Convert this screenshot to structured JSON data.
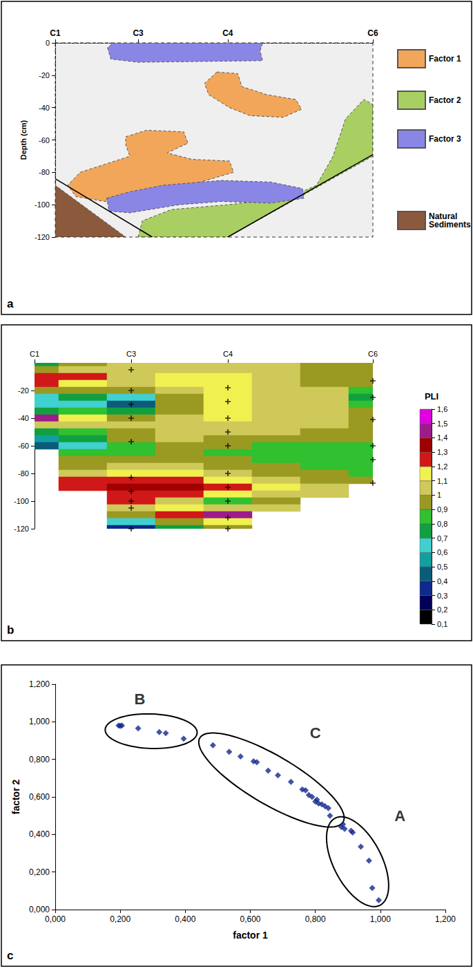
{
  "chart_data": [
    {
      "type": "region_map",
      "panel_label": "a",
      "y_label": "Depth (cm)",
      "xlim": [
        0,
        3.83
      ],
      "xticks": [
        {
          "value": 0,
          "label": "C1"
        },
        {
          "value": 1,
          "label": "C3"
        },
        {
          "value": 2.08,
          "label": "C4"
        },
        {
          "value": 3.83,
          "label": "C6"
        }
      ],
      "ylim": [
        -120,
        0
      ],
      "yticks": [
        0,
        -20,
        -40,
        -60,
        -80,
        -100,
        -120
      ],
      "grid": false,
      "legend": "right",
      "series": [
        {
          "name": "Factor 1",
          "color": "#f2a65a",
          "regions": [
            [
              [
                1.95,
                -18
              ],
              [
                2.2,
                -19
              ],
              [
                2.25,
                -27
              ],
              [
                2.55,
                -32
              ],
              [
                2.9,
                -35
              ],
              [
                2.97,
                -41
              ],
              [
                2.75,
                -46
              ],
              [
                2.35,
                -45
              ],
              [
                2.1,
                -40
              ],
              [
                1.85,
                -32
              ],
              [
                1.8,
                -25
              ]
            ],
            [
              [
                0.85,
                -58
              ],
              [
                1.1,
                -54
              ],
              [
                1.55,
                -55
              ],
              [
                1.6,
                -62
              ],
              [
                1.35,
                -68
              ],
              [
                1.65,
                -72
              ],
              [
                2.1,
                -73
              ],
              [
                2.15,
                -80
              ],
              [
                1.75,
                -86
              ],
              [
                1.2,
                -93
              ],
              [
                0.6,
                -98
              ],
              [
                0.25,
                -95
              ],
              [
                0.15,
                -88
              ],
              [
                0.3,
                -80
              ],
              [
                0.6,
                -75
              ],
              [
                0.9,
                -70
              ],
              [
                0.85,
                -63
              ]
            ]
          ]
        },
        {
          "name": "Factor 2",
          "color": "#a9cf62",
          "regions": [
            [
              [
                1.0,
                -120
              ],
              [
                1.05,
                -110
              ],
              [
                1.4,
                -103
              ],
              [
                2.08,
                -100
              ],
              [
                2.8,
                -96
              ],
              [
                3.15,
                -88
              ],
              [
                3.35,
                -70
              ],
              [
                3.5,
                -47
              ],
              [
                3.72,
                -35
              ],
              [
                3.83,
                -38
              ],
              [
                3.83,
                -70
              ],
              [
                2.08,
                -120
              ]
            ]
          ]
        },
        {
          "name": "Factor 3",
          "color": "#8a86e6",
          "regions": [
            [
              [
                0.63,
                -3
              ],
              [
                0.67,
                -10
              ],
              [
                1.0,
                -12
              ],
              [
                2.5,
                -11
              ],
              [
                2.47,
                -5
              ],
              [
                2.5,
                0
              ],
              [
                0.7,
                0
              ]
            ],
            [
              [
                0.62,
                -96
              ],
              [
                0.9,
                -92
              ],
              [
                1.3,
                -88
              ],
              [
                2.0,
                -85
              ],
              [
                2.6,
                -86
              ],
              [
                2.98,
                -90
              ],
              [
                3.0,
                -96
              ],
              [
                2.6,
                -99
              ],
              [
                2.0,
                -98
              ],
              [
                1.5,
                -100
              ],
              [
                0.9,
                -105
              ],
              [
                0.65,
                -104
              ]
            ]
          ]
        },
        {
          "name": "Natural Sediments",
          "color": "#8b5a3c",
          "regions": [
            [
              [
                0,
                -88
              ],
              [
                0,
                -120
              ],
              [
                0.85,
                -120
              ]
            ]
          ]
        }
      ],
      "boundaries": [
        [
          [
            0,
            -84
          ],
          [
            1.17,
            -120
          ]
        ],
        [
          [
            2.08,
            -120
          ],
          [
            3.83,
            -69
          ]
        ]
      ]
    },
    {
      "type": "contour",
      "panel_label": "b",
      "xlim": [
        0,
        3.5
      ],
      "xticks": [
        {
          "value": 0,
          "label": "C1"
        },
        {
          "value": 1,
          "label": "C3"
        },
        {
          "value": 2,
          "label": "C4"
        },
        {
          "value": 3.5,
          "label": "C6"
        }
      ],
      "ylim": [
        -120,
        0
      ],
      "yticks": [
        -20,
        -40,
        -60,
        -80,
        -100,
        -120
      ],
      "grid": false,
      "x": [
        0,
        0.5,
        1,
        1.5,
        2,
        2.5,
        3,
        3.5
      ],
      "y": [
        0,
        -5,
        -10,
        -15,
        -20,
        -25,
        -30,
        -35,
        -40,
        -45,
        -50,
        -55,
        -60,
        -65,
        -70,
        -75,
        -80,
        -85,
        -90,
        -95,
        -100,
        -105,
        -110,
        -115,
        -120
      ],
      "pli": [
        [
          0.7,
          0.95,
          1.0,
          1.0,
          1.0,
          1.0,
          0.95,
          0.95
        ],
        [
          0.9,
          1.05,
          1.0,
          1.05,
          1.05,
          1.05,
          0.95,
          0.95
        ],
        [
          1.25,
          1.2,
          1.05,
          1.1,
          1.1,
          1.05,
          0.95,
          0.95
        ],
        [
          1.25,
          1.15,
          1.0,
          1.1,
          1.1,
          1.05,
          0.95,
          0.9
        ],
        [
          0.95,
          0.95,
          0.95,
          1.05,
          1.1,
          1.05,
          1.0,
          0.85
        ],
        [
          0.65,
          0.7,
          0.6,
          0.95,
          1.1,
          1.05,
          1.0,
          0.75
        ],
        [
          0.6,
          0.6,
          0.45,
          0.9,
          1.1,
          1.05,
          1.05,
          0.85
        ],
        [
          0.7,
          0.8,
          0.7,
          0.95,
          1.1,
          1.05,
          1.05,
          0.95
        ],
        [
          1.4,
          1.15,
          0.95,
          1.05,
          1.1,
          1.05,
          1.0,
          0.95
        ],
        [
          1.05,
          1.0,
          1.0,
          1.05,
          1.05,
          1.0,
          1.0,
          0.95
        ],
        [
          0.75,
          0.85,
          0.95,
          1.0,
          1.0,
          1.0,
          0.95,
          0.95
        ],
        [
          0.55,
          0.75,
          0.9,
          1.05,
          0.95,
          0.95,
          0.95,
          0.95
        ],
        [
          0.4,
          0.65,
          0.8,
          0.95,
          0.9,
          0.85,
          0.85,
          0.85
        ],
        [
          null,
          0.8,
          0.85,
          0.9,
          0.85,
          0.85,
          0.85,
          0.85
        ],
        [
          null,
          0.9,
          0.95,
          0.95,
          0.9,
          0.85,
          0.85,
          0.85
        ],
        [
          null,
          0.95,
          1.0,
          1.0,
          0.95,
          0.9,
          0.85,
          0.85
        ],
        [
          null,
          1.05,
          1.1,
          1.1,
          1.05,
          0.95,
          0.9,
          0.85
        ],
        [
          null,
          1.2,
          1.25,
          1.25,
          1.15,
          1.05,
          0.95,
          0.95
        ],
        [
          null,
          1.2,
          1.3,
          1.3,
          1.25,
          1.1,
          1.0,
          null
        ],
        [
          null,
          null,
          1.25,
          1.25,
          1.1,
          1.05,
          1.0,
          null
        ],
        [
          null,
          null,
          1.2,
          1.05,
          0.8,
          0.9,
          null,
          null
        ],
        [
          null,
          null,
          1.05,
          1.1,
          1.05,
          1.0,
          null,
          null
        ],
        [
          null,
          null,
          0.95,
          1.2,
          1.45,
          null,
          null,
          null
        ],
        [
          null,
          null,
          0.6,
          0.9,
          1.1,
          null,
          null,
          null
        ],
        [
          null,
          null,
          0.3,
          0.7,
          0.9,
          null,
          null,
          null
        ]
      ],
      "samples": [
        [
          1,
          -5
        ],
        [
          1,
          -20
        ],
        [
          1,
          -30
        ],
        [
          1,
          -40
        ],
        [
          1,
          -57
        ],
        [
          1,
          -83
        ],
        [
          1,
          -93
        ],
        [
          1,
          -100
        ],
        [
          1,
          -105
        ],
        [
          1,
          -120
        ],
        [
          2,
          -18
        ],
        [
          2,
          -28
        ],
        [
          2,
          -40
        ],
        [
          2,
          -50
        ],
        [
          2,
          -60
        ],
        [
          2,
          -80
        ],
        [
          2,
          -90
        ],
        [
          2,
          -100
        ],
        [
          2,
          -112
        ],
        [
          2,
          -120
        ],
        [
          3.5,
          -13
        ],
        [
          3.5,
          -25
        ],
        [
          3.5,
          -41
        ],
        [
          3.5,
          -60
        ],
        [
          3.5,
          -70
        ],
        [
          3.5,
          -87
        ]
      ],
      "colorbar": {
        "title": "PLI",
        "range": [
          0.1,
          1.6
        ],
        "ticks": [
          {
            "value": 0.1,
            "label": "0,1"
          },
          {
            "value": 0.2,
            "label": "0,2"
          },
          {
            "value": 0.3,
            "label": "0,3"
          },
          {
            "value": 0.4,
            "label": "0,4"
          },
          {
            "value": 0.5,
            "label": "0,5"
          },
          {
            "value": 0.6,
            "label": "0,6"
          },
          {
            "value": 0.7,
            "label": "0,7"
          },
          {
            "value": 0.8,
            "label": "0,8"
          },
          {
            "value": 0.9,
            "label": "0,9"
          },
          1,
          {
            "value": 1.1,
            "label": "1,1"
          },
          {
            "value": 1.2,
            "label": "1,2"
          },
          {
            "value": 1.3,
            "label": "1,3"
          },
          {
            "value": 1.4,
            "label": "1,4"
          },
          {
            "value": 1.5,
            "label": "1,5"
          },
          {
            "value": 1.6,
            "label": "1,6"
          }
        ],
        "colors": [
          "#000000",
          "#00005a",
          "#0d2a8c",
          "#0b5c7a",
          "#10a0a0",
          "#40d0d0",
          "#10a040",
          "#30c030",
          "#9a9a22",
          "#cfc95a",
          "#f0f050",
          "#d01818",
          "#a00000",
          "#9c1c8c",
          "#e000e0"
        ]
      }
    },
    {
      "type": "scatter",
      "panel_label": "c",
      "x_label": "factor 1",
      "y_label": "factor 2",
      "xlim": [
        0,
        1.2
      ],
      "ylim": [
        0,
        1.2
      ],
      "xticks": [
        {
          "value": 0,
          "label": "0,000"
        },
        {
          "value": 0.2,
          "label": "0,200"
        },
        {
          "value": 0.4,
          "label": "0,400"
        },
        {
          "value": 0.6,
          "label": "0,600"
        },
        {
          "value": 0.8,
          "label": "0,800"
        },
        {
          "value": 1,
          "label": "1,000"
        },
        {
          "value": 1.2,
          "label": "1,200"
        }
      ],
      "yticks": [
        {
          "value": 0,
          "label": "0,000"
        },
        {
          "value": 0.2,
          "label": "0,200"
        },
        {
          "value": 0.4,
          "label": "0,400"
        },
        {
          "value": 0.6,
          "label": "0,600"
        },
        {
          "value": 0.8,
          "label": "0,800"
        },
        {
          "value": 1,
          "label": "1,000"
        },
        {
          "value": 1.2,
          "label": "1,200"
        }
      ],
      "grid": false,
      "color": "#14288c",
      "marker": "diamond",
      "x": [
        0.195,
        0.2,
        0.205,
        0.255,
        0.32,
        0.34,
        0.395,
        0.485,
        0.535,
        0.57,
        0.61,
        0.62,
        0.655,
        0.685,
        0.725,
        0.76,
        0.77,
        0.78,
        0.79,
        0.8,
        0.805,
        0.81,
        0.82,
        0.83,
        0.84,
        0.845,
        0.88,
        0.885,
        0.89,
        0.91,
        0.915,
        0.94,
        0.965,
        0.975,
        0.995
      ],
      "values": [
        0.98,
        0.978,
        0.98,
        0.965,
        0.945,
        0.94,
        0.91,
        0.875,
        0.84,
        0.815,
        0.79,
        0.785,
        0.74,
        0.715,
        0.68,
        0.64,
        0.635,
        0.61,
        0.6,
        0.575,
        0.585,
        0.565,
        0.56,
        0.55,
        0.54,
        0.5,
        0.44,
        0.455,
        0.43,
        0.42,
        0.41,
        0.335,
        0.26,
        0.115,
        0.05
      ],
      "groups": [
        {
          "label": "A",
          "label_at": [
            1.06,
            0.5
          ],
          "center": [
            0.93,
            0.255
          ],
          "a": [
            0.065,
            -0.235
          ],
          "b": [
            0.07,
            0.045
          ]
        },
        {
          "label": "B",
          "label_at": [
            0.26,
            1.12
          ],
          "center": [
            0.295,
            0.95
          ],
          "a": [
            0.14,
            -0.02
          ],
          "b": [
            0.02,
            0.09
          ]
        },
        {
          "label": "C",
          "label_at": [
            0.8,
            0.94
          ],
          "center": [
            0.665,
            0.69
          ],
          "a": [
            0.22,
            -0.225
          ],
          "b": [
            0.04,
            0.11
          ]
        }
      ]
    }
  ]
}
